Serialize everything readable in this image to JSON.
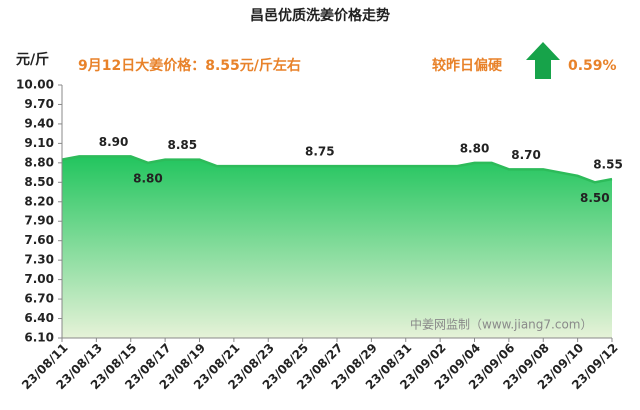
{
  "chart_data": {
    "type": "area",
    "title": "昌邑优质洗姜价格走势",
    "y_label": "元/斤",
    "annotation": "9月12日大姜价格：8.55元/斤左右",
    "change_text": "较昨日偏硬",
    "change_value": "0.59%",
    "watermark": "中姜网监制（www.jiang7.com）",
    "categories": [
      "23/08/11",
      null,
      "23/08/13",
      null,
      "23/08/15",
      null,
      "23/08/17",
      null,
      "23/08/19",
      null,
      "23/08/21",
      null,
      "23/08/23",
      null,
      "23/08/25",
      null,
      "23/08/27",
      null,
      "23/08/29",
      null,
      "23/08/31",
      null,
      "23/09/02",
      null,
      "23/09/04",
      null,
      "23/09/06",
      null,
      "23/09/08",
      null,
      "23/09/10",
      null,
      "23/09/12"
    ],
    "values": [
      8.85,
      8.9,
      8.9,
      8.9,
      8.9,
      8.8,
      8.85,
      8.85,
      8.85,
      8.75,
      8.75,
      8.75,
      8.75,
      8.75,
      8.75,
      8.75,
      8.75,
      8.75,
      8.75,
      8.75,
      8.75,
      8.75,
      8.75,
      8.75,
      8.8,
      8.8,
      8.7,
      8.7,
      8.7,
      8.65,
      8.6,
      8.5,
      8.55
    ],
    "value_labels": [
      null,
      null,
      null,
      "8.90",
      null,
      "8.80",
      null,
      "8.85",
      null,
      null,
      null,
      null,
      null,
      null,
      null,
      "8.75",
      null,
      null,
      null,
      null,
      null,
      null,
      null,
      null,
      "8.80",
      null,
      null,
      "8.70",
      null,
      null,
      null,
      "8.50",
      "8.55"
    ],
    "color": "#2dbb5a",
    "ylim": [
      6.1,
      10.0
    ],
    "yticks": [
      {
        "value": 6.1,
        "label": "6.10"
      },
      {
        "value": 6.4,
        "label": "6.40"
      },
      {
        "value": 6.7,
        "label": "6.70"
      },
      {
        "value": 7.0,
        "label": "7.00"
      },
      {
        "value": 7.3,
        "label": "7.30"
      },
      {
        "value": 7.6,
        "label": "7.60"
      },
      {
        "value": 7.9,
        "label": "7.90"
      },
      {
        "value": 8.2,
        "label": "8.20"
      },
      {
        "value": 8.5,
        "label": "8.50"
      },
      {
        "value": 8.8,
        "label": "8.80"
      },
      {
        "value": 9.1,
        "label": "9.10"
      },
      {
        "value": 9.4,
        "label": "9.40"
      },
      {
        "value": 9.7,
        "label": "9.70"
      },
      {
        "value": 10.0,
        "label": "10.00"
      }
    ]
  }
}
